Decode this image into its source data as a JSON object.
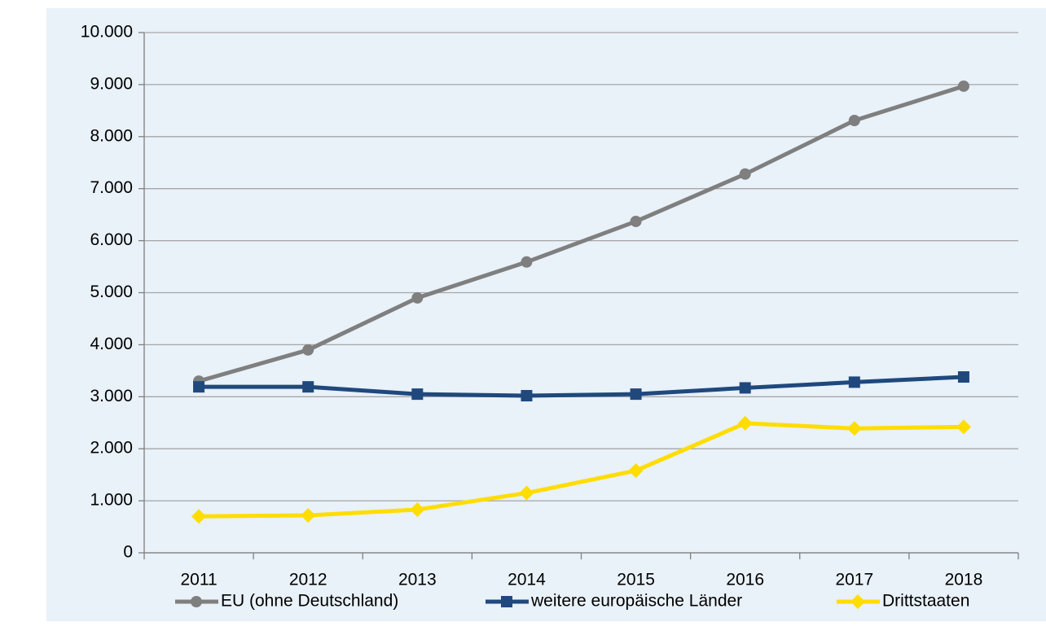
{
  "chart_data": {
    "type": "line",
    "categories": [
      "2011",
      "2012",
      "2013",
      "2014",
      "2015",
      "2016",
      "2017",
      "2018"
    ],
    "series": [
      {
        "name": "EU (ohne Deutschland)",
        "color": "#7f7f7f",
        "marker": "circle",
        "values": [
          3300,
          3900,
          4900,
          5590,
          6370,
          7280,
          8310,
          8970
        ]
      },
      {
        "name": "weitere europäische Länder",
        "color": "#1f497d",
        "marker": "square",
        "values": [
          3190,
          3190,
          3050,
          3020,
          3050,
          3170,
          3280,
          3380
        ]
      },
      {
        "name": "Drittstaaten",
        "color": "#ffdd00",
        "marker": "diamond",
        "values": [
          700,
          720,
          830,
          1150,
          1580,
          2490,
          2390,
          2420
        ]
      }
    ],
    "ylim": [
      0,
      10000
    ],
    "yticks": [
      0,
      {
        "value": 1000,
        "label": "1.000"
      },
      {
        "value": 2000,
        "label": "2.000"
      },
      {
        "value": 3000,
        "label": "3.000"
      },
      {
        "value": 4000,
        "label": "4.000"
      },
      {
        "value": 5000,
        "label": "5.000"
      },
      {
        "value": 6000,
        "label": "6.000"
      },
      {
        "value": 7000,
        "label": "7.000"
      },
      {
        "value": 8000,
        "label": "8.000"
      },
      {
        "value": 9000,
        "label": "9.000"
      },
      {
        "value": 10000,
        "label": "10.000"
      }
    ],
    "grid": true,
    "legend": "bottom"
  }
}
